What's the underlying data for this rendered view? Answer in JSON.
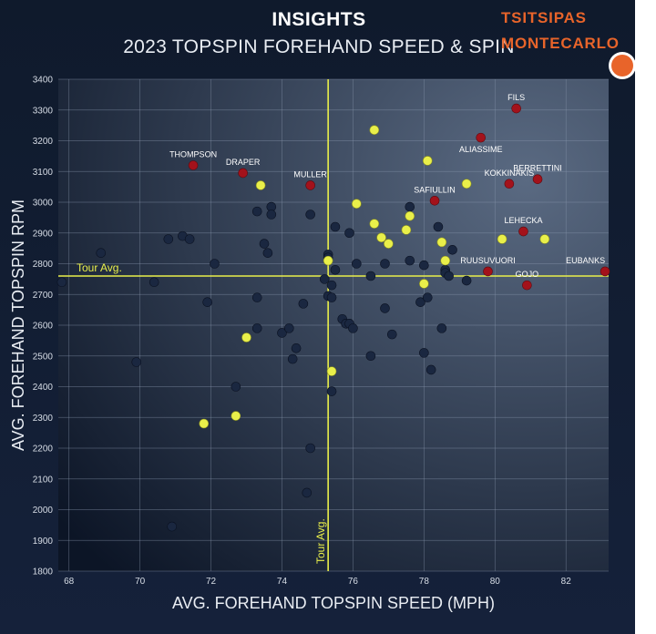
{
  "header": {
    "title": "INSIGHTS",
    "subtitle": "2023 TOPSPIN FOREHAND SPEED & SPIN",
    "brand_line1": "TSITSIPAS",
    "brand_line2": "MONTECARLO"
  },
  "colors": {
    "background": "#15213a",
    "plot_bg_light": "#5a6a82",
    "plot_bg_dark": "#0c1526",
    "grid": "#8c9ab0",
    "avg_line": "#e9ef4a",
    "dot_other": "#1a2740",
    "dot_highlight": "#e9ef4a",
    "dot_named": "#a3121b",
    "brand": "#e8642a"
  },
  "chart_data": {
    "type": "scatter",
    "xlabel": "AVG. FOREHAND TOPSPIN SPEED (MPH)",
    "ylabel": "AVG. FOREHAND TOPSPIN RPM",
    "xlim": [
      67.7,
      83.2
    ],
    "ylim": [
      1800,
      3400
    ],
    "xticks": [
      "68",
      "70",
      "72",
      "74",
      "76",
      "78",
      "80",
      "82"
    ],
    "yticks": [
      "1800",
      "1900",
      "2000",
      "2100",
      "2200",
      "2300",
      "2400",
      "2500",
      "2600",
      "2700",
      "2800",
      "2900",
      "3000",
      "3100",
      "3200",
      "3300",
      "3400"
    ],
    "grid": true,
    "tour_avg": {
      "x": 75.3,
      "y": 2760,
      "x_label": "Tour Avg.",
      "y_label": "Tour Avg."
    },
    "series": [
      {
        "points": [
          [
            67.8,
            2740
          ],
          [
            68.9,
            2835
          ],
          [
            69.9,
            2480
          ],
          [
            70.4,
            2740
          ],
          [
            70.8,
            2880
          ],
          [
            71.2,
            2890
          ],
          [
            71.4,
            2880
          ],
          [
            71.9,
            2675
          ],
          [
            72.1,
            2800
          ],
          [
            72.7,
            2400
          ],
          [
            73.3,
            2970
          ],
          [
            73.3,
            2690
          ],
          [
            73.3,
            2590
          ],
          [
            73.5,
            2865
          ],
          [
            73.6,
            2835
          ],
          [
            73.7,
            2985
          ],
          [
            73.7,
            2960
          ],
          [
            74.0,
            2575
          ],
          [
            74.2,
            2590
          ],
          [
            74.3,
            2490
          ],
          [
            74.4,
            2525
          ],
          [
            74.6,
            2670
          ],
          [
            74.8,
            2960
          ],
          [
            75.2,
            2750
          ],
          [
            75.3,
            2830
          ],
          [
            75.3,
            2820
          ],
          [
            75.3,
            2695
          ],
          [
            75.4,
            2730
          ],
          [
            75.4,
            2690
          ],
          [
            75.5,
            2780
          ],
          [
            75.5,
            2920
          ],
          [
            75.9,
            2900
          ],
          [
            75.7,
            2620
          ],
          [
            75.8,
            2605
          ],
          [
            75.9,
            2605
          ],
          [
            76.0,
            2590
          ],
          [
            76.1,
            2800
          ],
          [
            76.5,
            2760
          ],
          [
            76.5,
            2500
          ],
          [
            76.9,
            2800
          ],
          [
            76.9,
            2655
          ],
          [
            77.1,
            2570
          ],
          [
            77.6,
            2985
          ],
          [
            77.6,
            2810
          ],
          [
            77.9,
            2675
          ],
          [
            78.0,
            2795
          ],
          [
            78.0,
            2510
          ],
          [
            78.1,
            2690
          ],
          [
            78.2,
            2455
          ],
          [
            78.4,
            2920
          ],
          [
            78.5,
            2590
          ],
          [
            78.6,
            2780
          ],
          [
            78.6,
            2770
          ],
          [
            78.7,
            2760
          ],
          [
            78.8,
            2845
          ],
          [
            79.2,
            2745
          ],
          [
            74.7,
            2055
          ],
          [
            74.8,
            2200
          ],
          [
            70.9,
            1945
          ],
          [
            75.4,
            2385
          ]
        ]
      },
      {
        "points": [
          [
            71.8,
            2280
          ],
          [
            72.7,
            2305
          ],
          [
            73.0,
            2560
          ],
          [
            73.4,
            3055
          ],
          [
            75.3,
            2810
          ],
          [
            75.4,
            2450
          ],
          [
            76.1,
            2995
          ],
          [
            76.6,
            3235
          ],
          [
            76.6,
            2930
          ],
          [
            76.8,
            2885
          ],
          [
            77.0,
            2865
          ],
          [
            77.5,
            2910
          ],
          [
            77.6,
            2955
          ],
          [
            78.0,
            2735
          ],
          [
            78.1,
            3135
          ],
          [
            78.5,
            2870
          ],
          [
            78.6,
            2810
          ],
          [
            79.2,
            3060
          ],
          [
            80.2,
            2880
          ],
          [
            81.4,
            2880
          ]
        ]
      },
      {
        "points": [
          [
            71.5,
            3120,
            "THOMPSON"
          ],
          [
            72.9,
            3095,
            "DRAPER"
          ],
          [
            74.8,
            3055,
            "MULLER"
          ],
          [
            78.3,
            3005,
            "SAFIULLIN"
          ],
          [
            79.6,
            3210,
            "ALIASSIME"
          ],
          [
            80.6,
            3305,
            "FILS"
          ],
          [
            80.4,
            3060,
            "KOKKINAKIS"
          ],
          [
            81.2,
            3075,
            "BERRETTINI"
          ],
          [
            80.8,
            2905,
            "LEHECKA"
          ],
          [
            79.8,
            2775,
            "RUUSUVUORI"
          ],
          [
            80.9,
            2730,
            "GOJO"
          ],
          [
            83.1,
            2775,
            "EUBANKS"
          ]
        ]
      }
    ]
  }
}
